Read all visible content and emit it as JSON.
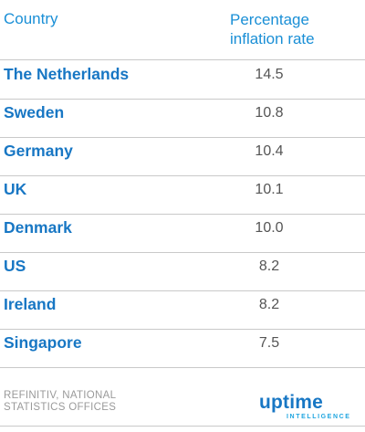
{
  "table": {
    "headers": {
      "country": "Country",
      "rate_line1": "Percentage",
      "rate_line2": "inflation rate"
    },
    "rows": [
      {
        "country": "The Netherlands",
        "value": "14.5"
      },
      {
        "country": "Sweden",
        "value": "10.8"
      },
      {
        "country": "Germany",
        "value": "10.4"
      },
      {
        "country": "UK",
        "value": "10.1"
      },
      {
        "country": "Denmark",
        "value": "10.0"
      },
      {
        "country": "US",
        "value": "8.2"
      },
      {
        "country": "Ireland",
        "value": "8.2"
      },
      {
        "country": "Singapore",
        "value": "7.5"
      }
    ]
  },
  "footer": {
    "source_line1": "REFINITIV, NATIONAL",
    "source_line2": "STATISTICS OFFICES",
    "logo_word": "uptime",
    "logo_sub": "INTELLIGENCE"
  },
  "colors": {
    "header_text": "#1a8fd6",
    "country_text": "#1877c4",
    "value_text": "#555555",
    "rule": "#c9c9c9",
    "source_text": "#9a9a9a",
    "logo_primary": "#1877c4",
    "logo_secondary": "#20a6e0"
  }
}
